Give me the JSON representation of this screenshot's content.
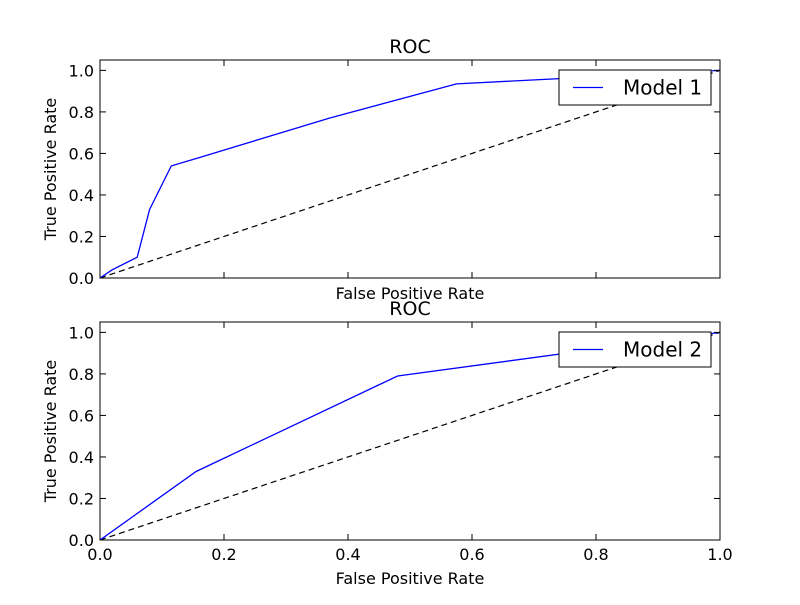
{
  "chart_data": [
    {
      "type": "line",
      "title": "ROC",
      "xlabel": "False Positive Rate",
      "ylabel": "True Positive Rate",
      "xlim": [
        0.0,
        1.0
      ],
      "ylim": [
        0.0,
        1.05
      ],
      "xticks": [],
      "yticks": [
        "0.0",
        "0.2",
        "0.4",
        "0.6",
        "0.8",
        "1.0"
      ],
      "grid": false,
      "legend_position": "top-right",
      "series": [
        {
          "name": "Model 1",
          "color": "#0000ff",
          "style": "solid",
          "x": [
            0.0,
            0.02,
            0.06,
            0.08,
            0.115,
            0.16,
            0.37,
            0.575,
            1.0
          ],
          "y": [
            0.0,
            0.04,
            0.1,
            0.33,
            0.54,
            0.58,
            0.77,
            0.935,
            1.0
          ]
        }
      ],
      "reference_line": {
        "color": "#000000",
        "style": "dashed",
        "x": [
          0.0,
          1.0
        ],
        "y": [
          0.0,
          1.0
        ]
      }
    },
    {
      "type": "line",
      "title": "ROC",
      "xlabel": "False Positive Rate",
      "ylabel": "True Positive Rate",
      "xlim": [
        0.0,
        1.0
      ],
      "ylim": [
        0.0,
        1.05
      ],
      "xticks": [
        "0.0",
        "0.2",
        "0.4",
        "0.6",
        "0.8",
        "1.0"
      ],
      "yticks": [
        "0.0",
        "0.2",
        "0.4",
        "0.6",
        "0.8",
        "1.0"
      ],
      "grid": false,
      "legend_position": "top-right",
      "series": [
        {
          "name": "Model 2",
          "color": "#0000ff",
          "style": "solid",
          "x": [
            0.0,
            0.155,
            0.48,
            1.0
          ],
          "y": [
            0.0,
            0.33,
            0.79,
            1.0
          ]
        }
      ],
      "reference_line": {
        "color": "#000000",
        "style": "dashed",
        "x": [
          0.0,
          1.0
        ],
        "y": [
          0.0,
          1.0
        ]
      }
    }
  ]
}
